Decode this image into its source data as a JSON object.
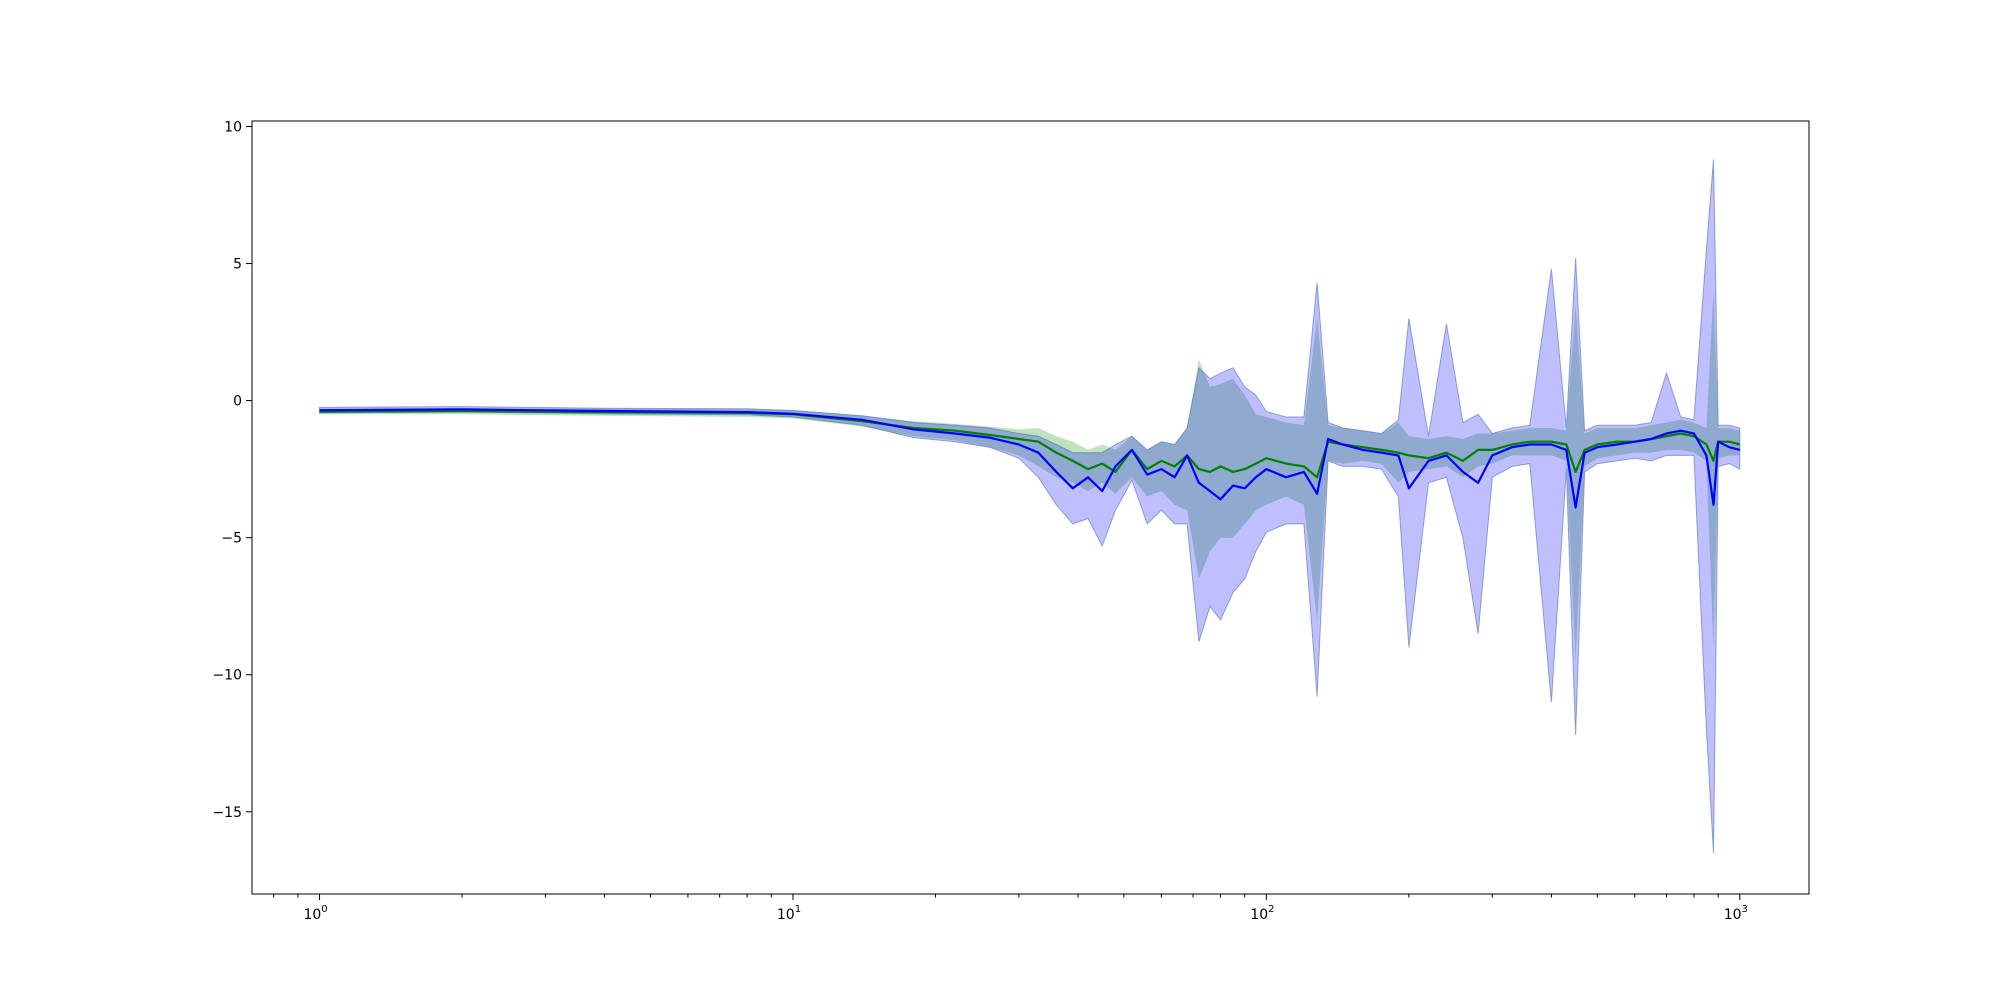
{
  "chart_data": {
    "type": "line",
    "title": "",
    "xlabel": "",
    "ylabel": "",
    "xscale": "log",
    "xlim": [
      0.72,
      1400
    ],
    "ylim": [
      -18,
      10.2
    ],
    "x_ticks": [
      {
        "value": 1,
        "base": "10",
        "exp": "0"
      },
      {
        "value": 10,
        "base": "10",
        "exp": "1"
      },
      {
        "value": 100,
        "base": "10",
        "exp": "2"
      },
      {
        "value": 1000,
        "base": "10",
        "exp": "3"
      }
    ],
    "y_ticks": [
      {
        "value": 10,
        "label": "10"
      },
      {
        "value": 5,
        "label": "5"
      },
      {
        "value": 0,
        "label": "0"
      },
      {
        "value": -5,
        "label": "−5"
      },
      {
        "value": -10,
        "label": "−10"
      },
      {
        "value": -15,
        "label": "−15"
      }
    ],
    "grid": false,
    "legend": null,
    "colors": {
      "green_line": "#008000",
      "blue_line": "#0000ff",
      "green_band": "#2ca02c",
      "blue_band": "#0000ff",
      "overlap_band": "#4c72b0"
    },
    "series": [
      {
        "color": "green",
        "x": [
          1,
          2,
          4,
          8,
          10,
          14,
          18,
          22,
          26,
          30,
          33,
          36,
          39,
          42,
          45,
          48,
          52,
          56,
          60,
          64,
          68,
          72,
          76,
          80,
          85,
          90,
          95,
          100,
          110,
          120,
          128,
          135,
          145,
          160,
          175,
          190,
          200,
          220,
          240,
          260,
          280,
          300,
          330,
          360,
          400,
          430,
          450,
          470,
          500,
          550,
          600,
          650,
          700,
          750,
          800,
          850,
          880,
          900,
          950,
          1000
        ],
        "y": [
          -0.4,
          -0.38,
          -0.42,
          -0.45,
          -0.5,
          -0.75,
          -1.0,
          -1.1,
          -1.25,
          -1.4,
          -1.5,
          -1.9,
          -2.2,
          -2.5,
          -2.3,
          -2.6,
          -1.8,
          -2.5,
          -2.2,
          -2.4,
          -2.0,
          -2.5,
          -2.6,
          -2.4,
          -2.6,
          -2.5,
          -2.3,
          -2.1,
          -2.3,
          -2.4,
          -2.8,
          -1.5,
          -1.6,
          -1.7,
          -1.8,
          -1.9,
          -2.0,
          -2.1,
          -1.9,
          -2.2,
          -1.8,
          -1.8,
          -1.6,
          -1.5,
          -1.5,
          -1.6,
          -2.6,
          -1.8,
          -1.6,
          -1.5,
          -1.5,
          -1.4,
          -1.3,
          -1.2,
          -1.3,
          -1.6,
          -2.2,
          -1.5,
          -1.5,
          -1.6
        ],
        "lower": [
          -0.5,
          -0.5,
          -0.55,
          -0.6,
          -0.65,
          -0.95,
          -1.3,
          -1.45,
          -1.7,
          -2.0,
          -2.4,
          -2.8,
          -3.0,
          -3.3,
          -3.0,
          -3.4,
          -2.8,
          -3.5,
          -3.3,
          -3.8,
          -4.0,
          -6.5,
          -5.5,
          -5.0,
          -5.0,
          -4.5,
          -4.0,
          -3.8,
          -3.5,
          -3.8,
          -8.0,
          -2.2,
          -2.3,
          -2.2,
          -2.3,
          -3.0,
          -2.6,
          -2.5,
          -2.4,
          -2.8,
          -2.4,
          -2.3,
          -2.0,
          -2.0,
          -2.0,
          -2.2,
          -9.5,
          -2.4,
          -2.1,
          -2.0,
          -1.9,
          -1.9,
          -1.8,
          -1.8,
          -1.9,
          -2.2,
          -9.0,
          -2.1,
          -2.0,
          -2.0
        ],
        "upper": [
          -0.3,
          -0.28,
          -0.3,
          -0.32,
          -0.35,
          -0.55,
          -0.75,
          -0.85,
          -0.95,
          -1.05,
          -1.0,
          -1.3,
          -1.5,
          -1.8,
          -1.6,
          -1.8,
          -1.3,
          -1.8,
          -1.5,
          -1.6,
          -1.0,
          1.5,
          0.5,
          0.6,
          0.8,
          0.2,
          -0.5,
          -0.6,
          -0.8,
          -0.9,
          3.0,
          -0.9,
          -1.0,
          -1.1,
          -1.2,
          -0.8,
          -1.3,
          -1.4,
          -1.3,
          -1.4,
          -1.2,
          -1.2,
          -1.1,
          -1.0,
          -1.0,
          -1.1,
          3.5,
          -1.2,
          -1.0,
          -1.0,
          -1.0,
          -0.9,
          -0.8,
          -0.7,
          -0.8,
          -1.0,
          4.0,
          -1.0,
          -1.0,
          -1.1
        ]
      },
      {
        "color": "blue",
        "x": [
          1,
          2,
          4,
          8,
          10,
          14,
          18,
          22,
          26,
          30,
          33,
          36,
          39,
          42,
          45,
          48,
          52,
          56,
          60,
          64,
          68,
          72,
          76,
          80,
          85,
          90,
          95,
          100,
          110,
          120,
          128,
          135,
          145,
          160,
          175,
          190,
          200,
          220,
          240,
          260,
          280,
          300,
          330,
          360,
          400,
          430,
          450,
          470,
          500,
          550,
          600,
          650,
          700,
          750,
          800,
          850,
          880,
          900,
          950,
          1000
        ],
        "y": [
          -0.35,
          -0.32,
          -0.38,
          -0.42,
          -0.48,
          -0.7,
          -1.05,
          -1.2,
          -1.35,
          -1.6,
          -1.9,
          -2.6,
          -3.2,
          -2.8,
          -3.3,
          -2.4,
          -1.8,
          -2.7,
          -2.5,
          -2.8,
          -2.0,
          -3.0,
          -3.3,
          -3.6,
          -3.1,
          -3.2,
          -2.8,
          -2.5,
          -2.8,
          -2.6,
          -3.4,
          -1.4,
          -1.6,
          -1.8,
          -1.9,
          -2.0,
          -3.2,
          -2.2,
          -2.0,
          -2.6,
          -3.0,
          -2.0,
          -1.7,
          -1.6,
          -1.6,
          -1.8,
          -3.9,
          -1.9,
          -1.7,
          -1.6,
          -1.5,
          -1.4,
          -1.2,
          -1.1,
          -1.2,
          -2.0,
          -3.8,
          -1.5,
          -1.7,
          -1.8
        ],
        "lower": [
          -0.45,
          -0.42,
          -0.48,
          -0.52,
          -0.6,
          -0.9,
          -1.35,
          -1.5,
          -1.7,
          -2.1,
          -2.8,
          -3.8,
          -4.5,
          -4.3,
          -5.3,
          -4.0,
          -2.9,
          -4.5,
          -4.0,
          -4.5,
          -4.5,
          -8.8,
          -7.5,
          -8.0,
          -7.0,
          -6.5,
          -5.5,
          -4.8,
          -4.5,
          -4.5,
          -10.8,
          -2.2,
          -2.4,
          -2.4,
          -2.5,
          -3.5,
          -9.0,
          -3.0,
          -2.8,
          -5.0,
          -8.5,
          -2.8,
          -2.4,
          -2.3,
          -11.0,
          -2.5,
          -12.2,
          -2.6,
          -2.3,
          -2.2,
          -2.1,
          -2.2,
          -2.0,
          -2.0,
          -2.0,
          -12.0,
          -16.5,
          -2.4,
          -2.3,
          -2.5
        ],
        "upper": [
          -0.25,
          -0.22,
          -0.28,
          -0.3,
          -0.36,
          -0.55,
          -0.8,
          -0.9,
          -1.0,
          -1.2,
          -1.3,
          -1.6,
          -1.9,
          -1.9,
          -1.9,
          -1.6,
          -1.3,
          -1.8,
          -1.5,
          -1.6,
          -1.0,
          1.2,
          0.8,
          1.0,
          1.2,
          0.5,
          0.2,
          -0.4,
          -0.6,
          -0.6,
          4.3,
          -0.8,
          -1.0,
          -1.1,
          -1.2,
          -0.7,
          3.0,
          -1.3,
          2.8,
          -0.8,
          -0.5,
          -1.2,
          -1.0,
          -0.9,
          4.8,
          -1.0,
          5.2,
          -1.1,
          -0.9,
          -0.9,
          -0.9,
          -0.8,
          1.0,
          -0.6,
          -0.7,
          5.5,
          8.8,
          -0.9,
          -0.9,
          -1.0
        ]
      }
    ]
  }
}
